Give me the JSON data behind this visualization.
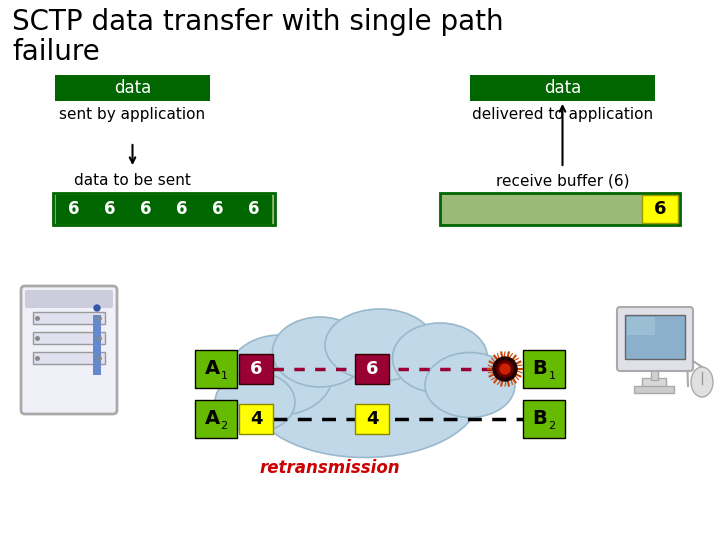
{
  "title_line1": "SCTP data transfer with single path",
  "title_line2": "failure",
  "title_fontsize": 20,
  "bg_color": "#ffffff",
  "dark_green": "#006600",
  "lime_green": "#66bb00",
  "light_green": "#99bb77",
  "yellow": "#ffff00",
  "dark_red": "#990033",
  "cloud_color": "#c0d8e8",
  "cloud_edge": "#9ab8cc",
  "send_buffer_label": "data",
  "recv_buffer_label": "data",
  "sent_by_app": "sent by application",
  "delivered_to_app": "delivered to application",
  "data_to_be_sent": "data to be sent",
  "receive_buffer": "receive buffer (6)",
  "retransmission": "retransmission",
  "send_values": [
    "6",
    "6",
    "6",
    "6",
    "6",
    "6"
  ],
  "recv_value": "6",
  "path1_val_left": "6",
  "path1_val_mid": "6",
  "path2_val_left": "4",
  "path2_val_mid": "4"
}
